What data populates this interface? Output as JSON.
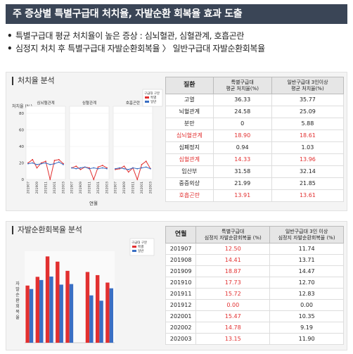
{
  "header": {
    "title": "주 증상별 특별구급대 처치율, 자발순환 회복율 효과 도출"
  },
  "bullets": [
    "특별구급대 평균 처치율이 높은 증상 : 심뇌혈관, 심혈관계, 호흡곤란",
    "심정지 처치 후 특별구급대 자발순환회복율 〉 일반구급대 자발순환회복율"
  ],
  "colors": {
    "special": "#e23030",
    "general": "#3a6fc4",
    "title_bg": "#3a4556"
  },
  "treatment": {
    "section_title": "처치율 분석",
    "chart": {
      "y_label": "처치율 (%)",
      "x_label": "연월",
      "legend_title": "구급대 구분",
      "legend": [
        "특별",
        "일반"
      ],
      "facet_titles": [
        "심뇌혈관계",
        "심혈관계",
        "호흡곤란"
      ],
      "y_ticks": [
        "80",
        "60",
        "40",
        "20",
        "0"
      ],
      "x_ticks": [
        "201907",
        "201909",
        "201911",
        "202001",
        "202003"
      ]
    },
    "table": {
      "headers": [
        "질환",
        "특별구급대\n평균 처치율(%)",
        "일반구급대 3인이상\n평균 처치율(%)"
      ],
      "rows": [
        {
          "name": "고열",
          "special": "36.33",
          "general": "35.77",
          "hl": false
        },
        {
          "name": "뇌혈관계",
          "special": "24.58",
          "general": "25.09",
          "hl": false
        },
        {
          "name": "분만",
          "special": "0",
          "general": "5.88",
          "hl": false
        },
        {
          "name": "심뇌혈관계",
          "special": "18.90",
          "general": "18.61",
          "hl": true
        },
        {
          "name": "심폐정지",
          "special": "0.94",
          "general": "1.03",
          "hl": false
        },
        {
          "name": "심혈관계",
          "special": "14.33",
          "general": "13.96",
          "hl": true
        },
        {
          "name": "임산부",
          "special": "31.58",
          "general": "32.14",
          "hl": false
        },
        {
          "name": "중증외상",
          "special": "21.99",
          "general": "21.85",
          "hl": false
        },
        {
          "name": "호흡곤란",
          "special": "13.91",
          "general": "13.61",
          "hl": true
        }
      ]
    }
  },
  "rosc": {
    "section_title": "자발순환회복율 분석",
    "chart": {
      "y_label": "자발순환회복율",
      "legend_title": "구급대 구분",
      "legend": [
        "특별",
        "일반"
      ]
    },
    "table": {
      "headers": [
        "연월",
        "특별구급대\n심정지 자발순환회복율 (%)",
        "일반구급대 3인 이상\n심정지 자발순환회복율 (%)"
      ],
      "rows": [
        {
          "ym": "201907",
          "special": "12.50",
          "general": "11.74"
        },
        {
          "ym": "201908",
          "special": "14.41",
          "general": "13.71"
        },
        {
          "ym": "201909",
          "special": "18.87",
          "general": "14.47"
        },
        {
          "ym": "201910",
          "special": "17.73",
          "general": "12.70"
        },
        {
          "ym": "201911",
          "special": "15.72",
          "general": "12.83"
        },
        {
          "ym": "201912",
          "special": "0.00",
          "general": "0.00"
        },
        {
          "ym": "202001",
          "special": "15.47",
          "general": "10.35"
        },
        {
          "ym": "202002",
          "special": "14.78",
          "general": "9.19"
        },
        {
          "ym": "202003",
          "special": "13.15",
          "general": "11.90"
        }
      ]
    }
  },
  "chart_data": [
    {
      "type": "line",
      "ylabel": "처치율 (%)",
      "xlabel": "연월",
      "ylim": [
        0,
        80
      ],
      "x": [
        "201907",
        "201908",
        "201909",
        "201910",
        "201911",
        "201912",
        "202001",
        "202002",
        "202003"
      ],
      "facets": [
        {
          "name": "심뇌혈관계",
          "series": [
            {
              "name": "특별",
              "values": [
                20,
                24,
                14,
                20,
                22,
                0,
                23,
                24,
                19
              ]
            },
            {
              "name": "일반",
              "values": [
                19,
                20,
                18,
                19,
                20,
                18,
                19,
                21,
                18
              ]
            }
          ]
        },
        {
          "name": "심혈관계",
          "series": [
            {
              "name": "특별",
              "values": [
                14,
                16,
                12,
                15,
                14,
                0,
                15,
                17,
                14
              ]
            },
            {
              "name": "일반",
              "values": [
                14,
                13,
                14,
                15,
                13,
                14,
                13,
                14,
                13
              ]
            }
          ]
        },
        {
          "name": "호흡곤란",
          "series": [
            {
              "name": "특별",
              "values": [
                12,
                13,
                16,
                9,
                14,
                0,
                18,
                22,
                13
              ]
            },
            {
              "name": "일반",
              "values": [
                13,
                14,
                13,
                12,
                14,
                13,
                14,
                15,
                13
              ]
            }
          ]
        }
      ]
    },
    {
      "type": "bar",
      "ylabel": "자발순환회복율",
      "categories": [
        "201907",
        "201908",
        "201909",
        "201910",
        "201911",
        "201912",
        "202001",
        "202002",
        "202003"
      ],
      "series": [
        {
          "name": "특별",
          "values": [
            12.5,
            14.41,
            18.87,
            17.73,
            15.72,
            0.0,
            15.47,
            14.78,
            13.15
          ]
        },
        {
          "name": "일반",
          "values": [
            11.74,
            13.71,
            14.47,
            12.7,
            12.83,
            0.0,
            10.35,
            9.19,
            11.9
          ]
        }
      ]
    }
  ]
}
